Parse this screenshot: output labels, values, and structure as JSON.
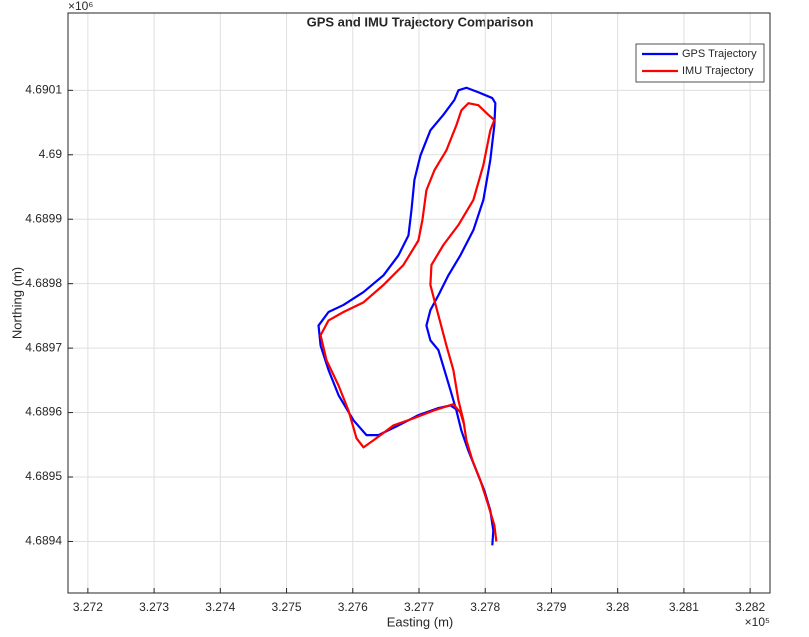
{
  "chart_data": {
    "type": "line",
    "title": "GPS and IMU Trajectory Comparison",
    "x_label": "Easting (m)",
    "y_label": "Northing (m)",
    "x_exponent": "×10⁵",
    "y_exponent": "×10⁶",
    "xlim": [
      3.2717,
      3.2823
    ],
    "ylim": [
      4.68932,
      4.69022
    ],
    "xticks": [
      3.272,
      3.273,
      3.274,
      3.275,
      3.276,
      3.277,
      3.278,
      3.279,
      3.28,
      3.281,
      3.282
    ],
    "yticks": [
      4.6894,
      4.6895,
      4.6896,
      4.6897,
      4.6898,
      4.6899,
      4.69,
      4.6901
    ],
    "grid": true,
    "legend": "top-right",
    "series": [
      {
        "name": "GPS Trajectory",
        "color": "#0000ff",
        "x": [
          3.278107,
          3.278122,
          3.278077,
          3.277987,
          3.277866,
          3.277745,
          3.27764,
          3.277565,
          3.277474,
          3.277384,
          3.277293,
          3.277172,
          3.277112,
          3.277172,
          3.277293,
          3.277444,
          3.277625,
          3.277821,
          3.277972,
          3.278077,
          3.278138,
          3.278153,
          3.278107,
          3.277896,
          3.277716,
          3.277595,
          3.277534,
          3.277368,
          3.277172,
          3.277022,
          3.276931,
          3.276886,
          3.276841,
          3.27669,
          3.276464,
          3.276162,
          3.27586,
          3.275634,
          3.275483,
          3.275514,
          3.275634,
          3.275785,
          3.276011,
          3.276207,
          3.276388,
          3.27669,
          3.276991,
          3.277293,
          3.277474,
          3.277595
        ],
        "values": [
          4.689394,
          4.689417,
          4.689448,
          4.689479,
          4.68951,
          4.689541,
          4.689572,
          4.689603,
          4.689635,
          4.689666,
          4.689697,
          4.689712,
          4.689735,
          4.689759,
          4.689782,
          4.689813,
          4.689844,
          4.689883,
          4.68993,
          4.689992,
          4.690046,
          4.69008,
          4.690088,
          4.690097,
          4.690104,
          4.6901,
          4.690085,
          4.690062,
          4.690038,
          4.689999,
          4.689961,
          4.689914,
          4.689875,
          4.689844,
          4.689813,
          4.689787,
          4.689767,
          4.689756,
          4.689735,
          4.689704,
          4.689666,
          4.689627,
          4.689588,
          4.689565,
          4.689565,
          4.68958,
          4.689596,
          4.689607,
          4.689611,
          4.689603
        ]
      },
      {
        "name": "IMU Trajectory",
        "color": "#ff0000",
        "x": [
          3.278168,
          3.278138,
          3.278047,
          3.277926,
          3.277806,
          3.277716,
          3.27767,
          3.277595,
          3.277519,
          3.277414,
          3.277293,
          3.277233,
          3.277172,
          3.277188,
          3.277368,
          3.277595,
          3.277821,
          3.277972,
          3.278077,
          3.278138,
          3.278047,
          3.277896,
          3.277745,
          3.27764,
          3.277565,
          3.277414,
          3.277233,
          3.277112,
          3.277052,
          3.276991,
          3.276765,
          3.276464,
          3.276162,
          3.27586,
          3.275634,
          3.275514,
          3.275604,
          3.275785,
          3.275936,
          3.276057,
          3.276162,
          3.276313,
          3.276614,
          3.276916,
          3.277218,
          3.277519,
          3.277625,
          3.277685
        ],
        "values": [
          4.6894,
          4.689425,
          4.689456,
          4.689495,
          4.689526,
          4.689557,
          4.689588,
          4.689619,
          4.689666,
          4.689704,
          4.689751,
          4.689774,
          4.689798,
          4.689829,
          4.68986,
          4.689891,
          4.68993,
          4.689984,
          4.690038,
          4.690054,
          4.690062,
          4.690077,
          4.69008,
          4.690069,
          4.690046,
          4.690007,
          4.689976,
          4.689945,
          4.689899,
          4.689867,
          4.689829,
          4.689798,
          4.689771,
          4.689756,
          4.689743,
          4.68972,
          4.689681,
          4.689642,
          4.689603,
          4.68956,
          4.689546,
          4.689557,
          4.68958,
          4.689591,
          4.689603,
          4.689613,
          4.6896,
          4.68958
        ]
      }
    ]
  }
}
